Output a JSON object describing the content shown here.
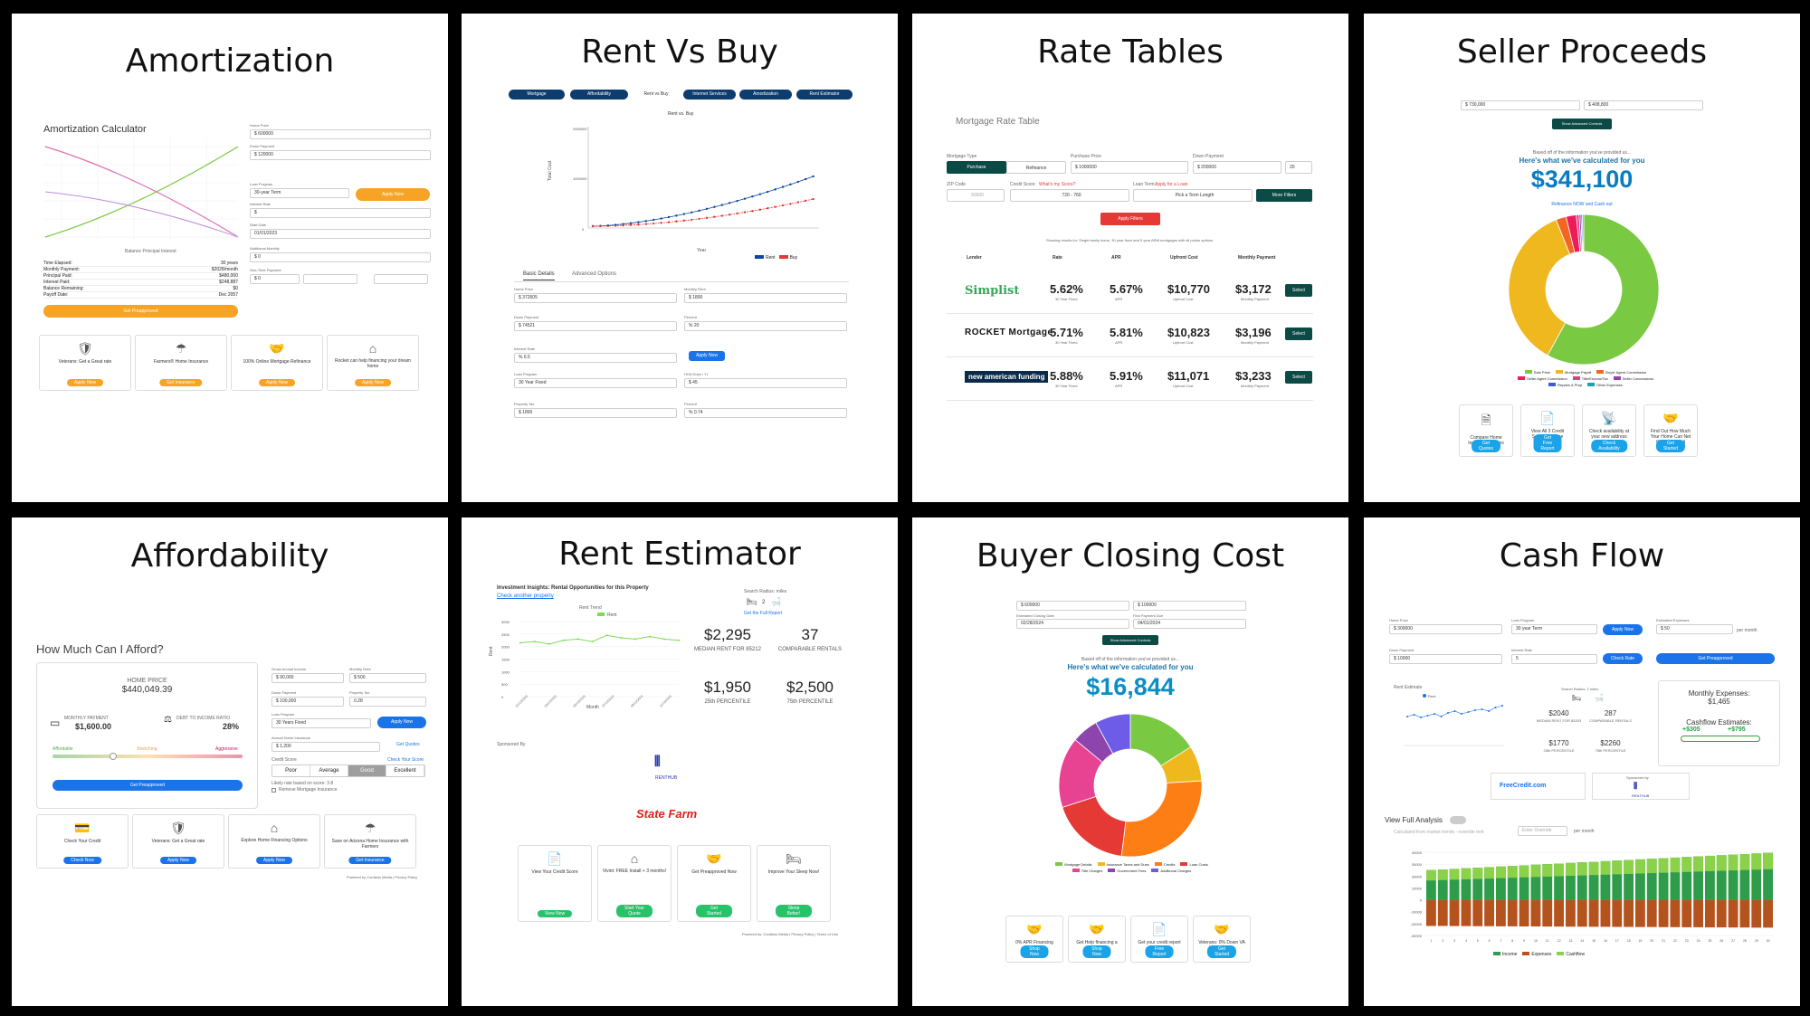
{
  "tiles": {
    "amortization": {
      "title": "Amortization",
      "calc_title": "Amortization Calculator",
      "fields": [
        {
          "label": "Home Price",
          "value": "$ 600000"
        },
        {
          "label": "Down Payment",
          "value": "$ 120000"
        },
        {
          "label": "Loan Program",
          "value": "30-year Term"
        },
        {
          "label": "Interest Rate",
          "value": "$"
        },
        {
          "label": "Start Date",
          "value": "01/01/2023"
        },
        {
          "label": "Additional Monthly",
          "value": "$ 0"
        },
        {
          "label": "One-Time Payment",
          "value": "$ 0"
        }
      ],
      "apply_label": "Apply Now",
      "legend": "Balance  Principal  Interest",
      "summary": [
        [
          "Time Elapsed:",
          "30 years"
        ],
        [
          "Monthly Payment:",
          "$2028/month"
        ],
        [
          "Principal Paid:",
          "$480,000"
        ],
        [
          "Interest Paid:",
          "$248,887"
        ],
        [
          "Balance Remaining:",
          "$0"
        ],
        [
          "Payoff Date:",
          "Dec 2057"
        ]
      ],
      "preapproved_label": "Get Preapproved",
      "cards": [
        {
          "icon": "shield-icon",
          "glyph": "🛡",
          "text": "Veterans: Get a Great rate",
          "button": "Apply Now"
        },
        {
          "icon": "umbrella-icon",
          "glyph": "☂",
          "text": "Farmers® Home Insurance",
          "button": "Get Insurance"
        },
        {
          "icon": "handshake-icon",
          "glyph": "🤝",
          "text": "100% Online Mortgage Refinance",
          "button": "Apply Now"
        },
        {
          "icon": "house-icon",
          "glyph": "⌂",
          "text": "Rocket can help financing your dream home",
          "button": "Apply Now"
        }
      ]
    },
    "rent_vs_buy": {
      "title": "Rent Vs Buy",
      "nav": [
        "Mortgage",
        "Affordability",
        "Rent vs Buy",
        "Internet Services",
        "Amortization",
        "Rent Estimator"
      ],
      "chart_title": "Rent vs. Buy",
      "ylabel": "Total Cost",
      "xlabel": "Year",
      "y_ticks": [
        "2000000",
        "1000000",
        "0"
      ],
      "legend": [
        "Rent",
        "Buy"
      ],
      "tabs": [
        "Basic Details",
        "Advanced Options"
      ],
      "fields": [
        {
          "label": "Home Price",
          "value": "$  372605"
        },
        {
          "label": "Monthly Rent",
          "value": "$  1800"
        },
        {
          "label": "Down Payment",
          "value": "$  74521"
        },
        {
          "label": "Percent",
          "value": "%  20"
        },
        {
          "label": "Interest Rate",
          "value": "%  6.5"
        },
        {
          "label": "Loan Program",
          "value": "30 Year Fixed"
        },
        {
          "label": "HOA Dues / Yr",
          "value": "$  45"
        },
        {
          "label": "Property Tax",
          "value": "$  1800"
        },
        {
          "label": "Percent",
          "value": "%  0.74"
        }
      ],
      "apply_label": "Apply Now"
    },
    "rate_tables": {
      "title": "Rate Tables",
      "subtitle": "Mortgage Rate Table",
      "mortgage_type_label": "Mortgage Type",
      "type_buttons": [
        "Purchase",
        "Refinance"
      ],
      "purchase_price_label": "Purchase Price",
      "purchase_price": "$   1000000",
      "down_payment_label": "Down Payment",
      "down_payment": "$   200000",
      "down_pct": "20",
      "zip_label": "ZIP Code",
      "zip": "90000",
      "credit_label": "Credit Score",
      "credit_link": "What's my Score?",
      "credit_value": "720 - 760",
      "loan_term_label": "Loan Term",
      "loan_term_link": "Apply for a Loan",
      "loan_term_value": "Pick a Term Length",
      "more_filters": "More Filters",
      "apply_filters": "Apply Filters",
      "results_text": "Showing results for: Single family home, 30 year fixed and 5 year ARM mortgages with all points options",
      "columns": [
        "Lender",
        "Rate",
        "APR",
        "Upfront Cost",
        "Monthly Payment"
      ],
      "rows": [
        {
          "lender": "Simplist",
          "rate": "5.62%",
          "rate_sub": "30 Year Fixed",
          "apr": "5.67%",
          "upfront": "$10,770",
          "monthly": "$3,172",
          "select": "Select"
        },
        {
          "lender": "ROCKET Mortgage",
          "rate": "5.71%",
          "rate_sub": "30 Year Fixed",
          "apr": "5.81%",
          "upfront": "$10,823",
          "monthly": "$3,196",
          "select": "Select"
        },
        {
          "lender": "new american funding",
          "rate": "5.88%",
          "rate_sub": "30 Year Fixed",
          "apr": "5.91%",
          "upfront": "$11,071",
          "monthly": "$3,233",
          "select": "Select"
        }
      ],
      "sub_labels": {
        "apr": "APR",
        "upfront": "Upfront Cost",
        "monthly": "Monthly Payment"
      }
    },
    "seller_proceeds": {
      "title": "Seller Proceeds",
      "inputs": [
        "$  730,000",
        "$  408,800"
      ],
      "advanced_label": "Show Advanced Controls",
      "intro": "Based off of the information you've provided us...",
      "headline": "Here's what we've calculated for you",
      "amount": "$341,100",
      "refinance": "Refinance NOW and Cash out",
      "legend": [
        "Sale Price",
        "Mortgage Payoff",
        "Buyer Agent Commission",
        "Seller Agent Commission",
        "Title/Escrow/Tax",
        "Seller Concessions",
        "Repairs & Prep",
        "Other Expenses"
      ],
      "cards": [
        {
          "icon": "document-icon",
          "glyph": "🗎",
          "text": "Compare Home Insurance Quotes",
          "button": "Get Quotes"
        },
        {
          "icon": "report-icon",
          "glyph": "📄",
          "text": "View All 3 Credit Scores for Free",
          "button": "Get Free Report"
        },
        {
          "icon": "tower-icon",
          "glyph": "📡",
          "text": "Check availability at your new address",
          "button": "Check Availability"
        },
        {
          "icon": "handshake-icon",
          "glyph": "🤝",
          "text": "Find Out How Much Your Home Can Net When You Sell",
          "button": "Get Started"
        }
      ],
      "chart_data": {
        "type": "pie",
        "categories": [
          "Sale Price",
          "Mortgage Payoff",
          "Buyer Agent Commission",
          "Seller Agent Commission",
          "Title/Escrow/Tax",
          "Seller Concessions",
          "Repairs & Prep",
          "Other Expenses"
        ],
        "values": [
          58,
          36,
          2.2,
          2.2,
          0.6,
          0.4,
          0.3,
          0.3
        ],
        "colors": [
          "#7ac943",
          "#f0b81f",
          "#f26522",
          "#ec1c5c",
          "#e33b7a",
          "#8e44ad",
          "#3b5bdb",
          "#17a2b8"
        ]
      }
    },
    "affordability": {
      "title": "Affordability",
      "question": "How Much Can I Afford?",
      "home_price_label": "HOME PRICE",
      "home_price": "$440,049.39",
      "monthly_label": "MONTHLY PAYMENT",
      "monthly": "$1,600.00",
      "dti_label": "DEBT TO INCOME RATIO",
      "dti": "28%",
      "scale": [
        "Affordable",
        "Stretching",
        "Aggressive"
      ],
      "preapproved_label": "Get Preapproved",
      "fields": [
        {
          "label": "Gross Annual Income",
          "value": "$  90,000"
        },
        {
          "label": "Monthly Debt",
          "value": "$  500"
        },
        {
          "label": "Down Payment",
          "value": "$  100,000"
        },
        {
          "label": "Property Tax",
          "value": "0.28"
        },
        {
          "label": "Loan Program",
          "value": "30 Years Fixed"
        },
        {
          "label": "Annual Home Insurance",
          "value": "$  1,200"
        }
      ],
      "apply_label": "Apply Now",
      "quotes_label": "Get Quotes",
      "credit_label": "Credit Score",
      "credit_link": "Check Your Score",
      "credit_options": [
        "Poor",
        "Average",
        "Good",
        "Excellent"
      ],
      "rate_note": "Likely rate based on score: 3.8",
      "checkbox_label": "Remove Mortgage Insurance",
      "cards": [
        {
          "icon": "credit-card-icon",
          "glyph": "💳",
          "text": "Check Your Credit",
          "button": "Check Now"
        },
        {
          "icon": "shield-icon",
          "glyph": "🛡",
          "text": "Veterans: Get a Great rate",
          "button": "Apply Now"
        },
        {
          "icon": "house-icon",
          "glyph": "⌂",
          "text": "Explore Home Financing Options",
          "button": "Apply Now"
        },
        {
          "icon": "umbrella-icon",
          "glyph": "☂",
          "text": "Save on Arizona Home Insurance with Farmers",
          "button": "Get Insurance"
        }
      ],
      "footer": "Powered by Cordless Media | Privacy Policy"
    },
    "rent_estimator": {
      "title": "Rent Estimator",
      "headline": "Investment Insights: Rental Opportunities for this Property",
      "check_link": "Check another property",
      "search_radius": "Search Radius: miles",
      "beds_baths": "2",
      "full_report": "Get the Full Report",
      "trend_title": "Rent Trend",
      "trend_legend": "Rent",
      "ylabel": "Rent",
      "xlabel": "Month",
      "y_ticks": [
        "3000",
        "2500",
        "2000",
        "1500",
        "1000",
        "500",
        "0"
      ],
      "stats": [
        {
          "value": "$2,295",
          "label": "MEDIAN RENT FOR 85212"
        },
        {
          "value": "37",
          "label": "COMPARABLE RENTALS"
        },
        {
          "value": "$1,950",
          "label": "25th PERCENTILE"
        },
        {
          "value": "$2,500",
          "label": "75th PERCENTILE"
        }
      ],
      "sponsored": "Sponsored By",
      "renthub": "RENTHUB",
      "statefarm": "State Farm",
      "cards": [
        {
          "icon": "report-icon",
          "glyph": "📄",
          "text": "View Your Credit Score",
          "button": "View Now"
        },
        {
          "icon": "house-icon",
          "glyph": "⌂",
          "text": "Vivint: FREE Install + 3 months!",
          "button": "Start Your Quote"
        },
        {
          "icon": "handshake-icon",
          "glyph": "🤝",
          "text": "Get Preapproved Now",
          "button": "Get Started"
        },
        {
          "icon": "bed-icon",
          "glyph": "🛏",
          "text": "Improve Your Sleep Now!",
          "button": "Sleep Better!"
        }
      ],
      "footer": "Powered by: Cordless Media | Privacy Policy | Terms of Use",
      "chart_data": {
        "type": "line",
        "x": [
          "01/13/2023",
          "02/13/2023",
          "03/13/2023",
          "04/13/2023",
          "05/13/2023",
          "06/13/2023",
          "07/13/2023",
          "08/13/2023",
          "09/13/2023",
          "10/13/2023",
          "11/13/2023",
          "12/13/2023"
        ],
        "series": [
          {
            "name": "Rent",
            "values": [
              2150,
              2200,
              2100,
              2250,
              2300,
              2200,
              2450,
              2350,
              2300,
              2400,
              2300,
              2250
            ]
          }
        ],
        "ylim": [
          0,
          3000
        ]
      }
    },
    "buyer_closing": {
      "title": "Buyer Closing Cost",
      "inputs": [
        "$  600000",
        "$  100000"
      ],
      "closing_label": "Estimated Closing Date",
      "closing_date": "02/28/2024",
      "first_payment_label": "First Payment Due",
      "first_payment": "04/01/2024",
      "advanced_label": "Show Advanced Controls",
      "intro": "Based off of the information you've provided us...",
      "headline": "Here's what we've calculated for you",
      "amount": "$16,844",
      "legend": [
        "Mortgage Details",
        "Insurance Taxes and Dues",
        "Credits",
        "Loan Costs",
        "Title Charges",
        "Government Fees",
        "Additional Charges"
      ],
      "cards": [
        {
          "icon": "handshake-icon",
          "glyph": "🤝",
          "text": "0% APR Financing available",
          "button": "Shop Now"
        },
        {
          "icon": "handshake-icon",
          "glyph": "🤝",
          "text": "Get Help financing a home",
          "button": "Shop Now"
        },
        {
          "icon": "report-icon",
          "glyph": "📄",
          "text": "Get your credit report for free",
          "button": "Free Report"
        },
        {
          "icon": "handshake-icon",
          "glyph": "🤝",
          "text": "Veterans: 0% Down VA Home Loans",
          "button": "Get Started"
        }
      ],
      "chart_data": {
        "type": "pie",
        "categories": [
          "Mortgage Details",
          "Insurance Taxes and Dues",
          "Credits",
          "Loan Costs",
          "Title Charges",
          "Government Fees",
          "Additional Charges"
        ],
        "values": [
          16,
          8,
          28,
          18,
          16,
          6,
          8
        ],
        "colors": [
          "#7ac943",
          "#f0b81f",
          "#fd7e14",
          "#e53935",
          "#e84393",
          "#8e44ad",
          "#6c5ce7"
        ]
      }
    },
    "cash_flow": {
      "title": "Cash Flow",
      "fields": [
        {
          "label": "Home Price",
          "value": "$  300000"
        },
        {
          "label": "Loan Program",
          "value": "30 year Term"
        },
        {
          "label": "Estimated Expenses",
          "value": "$  50"
        },
        {
          "label": "Down Payment",
          "value": "$  10000"
        },
        {
          "label": "Interest Rate",
          "value": "5"
        }
      ],
      "per_month": "per month",
      "apply_label": "Apply Now",
      "check_rate": "Check Rate",
      "preapproved_label": "Get Preapproved",
      "rent_estimate_label": "Rent Estimate",
      "rent_legend": "Rent",
      "search_radius": "Search Radius: 2 miles",
      "stats": [
        {
          "value": "$2040",
          "label": "MEDIAN RENT FOR 85203"
        },
        {
          "value": "287",
          "label": "COMPARABLE RENTALS"
        },
        {
          "value": "$1770",
          "label": "25th PERCENTILE"
        },
        {
          "value": "$2260",
          "label": "75th PERCENTILE"
        }
      ],
      "monthly_expenses_label": "Monthly Expenses:",
      "monthly_expenses": "$1,465",
      "cashflow_label": "Cashflow Estimates:",
      "cashflow_values": [
        "+$305",
        "+$795"
      ],
      "freecredit": "FreeCredit.com",
      "sponsored": "Sponsored by",
      "renthub": "RENTHUB",
      "view_full": "View Full Analysis",
      "calc_note": "Calculated from market trends - override rent",
      "enter_override": "Enter Override",
      "per_month_short": "per month",
      "y_ticks": [
        "40000",
        "30000",
        "20000",
        "10000",
        "0",
        "-10000",
        "-20000",
        "-30000"
      ],
      "legend": [
        "Income",
        "Expenses",
        "Cashflow"
      ],
      "chart_data": {
        "type": "bar",
        "categories": [
          "1",
          "2",
          "3",
          "4",
          "5",
          "6",
          "7",
          "8",
          "9",
          "10",
          "11",
          "12",
          "13",
          "14",
          "15",
          "16",
          "17",
          "18",
          "19",
          "20",
          "21",
          "22",
          "23",
          "24",
          "25",
          "26",
          "27",
          "28",
          "29",
          "30"
        ],
        "series": [
          {
            "name": "Income",
            "values": [
              25000,
              25500,
              26000,
              26500,
              27000,
              27500,
              28000,
              28500,
              29000,
              29500,
              30000,
              30500,
              31000,
              31500,
              32000,
              32500,
              33000,
              33500,
              34000,
              34500,
              35000,
              35500,
              36000,
              36500,
              37000,
              37500,
              38000,
              38500,
              39000,
              39500
            ]
          },
          {
            "name": "Expenses",
            "values": [
              -22000,
              -22000,
              -22100,
              -22100,
              -22200,
              -22200,
              -22300,
              -22300,
              -22400,
              -22400,
              -22500,
              -22500,
              -22600,
              -22600,
              -22700,
              -22700,
              -22800,
              -22800,
              -22900,
              -22900,
              -23000,
              -23000,
              -23100,
              -23100,
              -23200,
              -23200,
              -23300,
              -23300,
              -23400,
              -23400
            ]
          },
          {
            "name": "Cashflow",
            "values": [
              3000,
              3500,
              3900,
              4400,
              4800,
              5300,
              5700,
              6200,
              6600,
              7100,
              7500,
              8000,
              8400,
              8900,
              9300,
              9800,
              10200,
              10700,
              11100,
              11600,
              12000,
              12500,
              12900,
              13400,
              13800,
              14300,
              14700,
              15200,
              15600,
              16100
            ]
          }
        ],
        "ylim": [
          -30000,
          40000
        ]
      }
    }
  },
  "colors": {
    "orange": "#f7a325",
    "blue": "#1a73e8",
    "navy": "#0d3c6e",
    "teal_dark": "#0b4a45",
    "red": "#f44336",
    "green": "#4caf50",
    "cyan": "#1aa3e8"
  }
}
